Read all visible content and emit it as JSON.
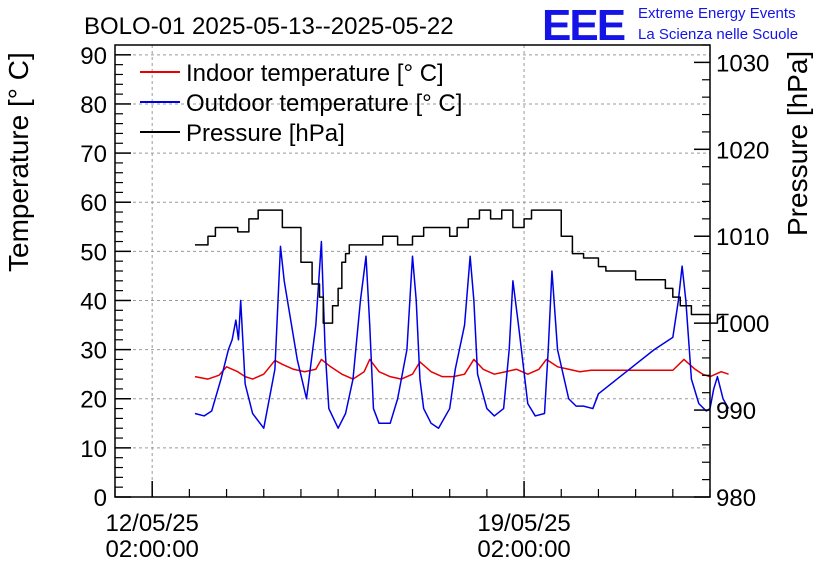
{
  "chart_data": {
    "type": "line",
    "title": "BOLO-01 2025-05-13--2025-05-22",
    "ylabel": "Temperature [° C]",
    "y2label": "Pressure [hPa]",
    "ylim": [
      0,
      92
    ],
    "y2lim": [
      980,
      1032
    ],
    "xlim_days": [
      12.0,
      28.0
    ],
    "y_ticks": [
      0,
      10,
      20,
      30,
      40,
      50,
      60,
      70,
      80,
      90
    ],
    "y2_ticks": [
      980,
      990,
      1000,
      1010,
      1020,
      1030
    ],
    "x_ticks": [
      {
        "day": 13.0,
        "line1": "12/05/25",
        "line2": "02:00:00"
      },
      {
        "day": 23.0,
        "line1": "19/05/25",
        "line2": "02:00:00"
      }
    ],
    "grid": true,
    "legend_position": "top-left",
    "series": [
      {
        "name": "Indoor temperature [° C]",
        "color": "#e60000",
        "axis": "left",
        "x": [
          14.15,
          14.5,
          14.8,
          15.0,
          15.3,
          15.5,
          15.7,
          16.0,
          16.3,
          16.5,
          16.8,
          17.1,
          17.4,
          17.55,
          17.8,
          18.1,
          18.4,
          18.7,
          18.85,
          19.1,
          19.4,
          19.7,
          20.0,
          20.2,
          20.5,
          20.8,
          21.1,
          21.4,
          21.65,
          21.9,
          22.2,
          22.5,
          22.8,
          23.1,
          23.4,
          23.6,
          23.9,
          24.2,
          24.5,
          24.8,
          25.0,
          25.5,
          26.0,
          26.5,
          26.8,
          27.0,
          27.3,
          27.6,
          27.8,
          28.0,
          28.3,
          28.5
        ],
        "y": [
          24.5,
          24.0,
          24.8,
          26.5,
          25.5,
          24.5,
          24.0,
          25.0,
          27.8,
          27.0,
          26.0,
          25.5,
          26.0,
          28.0,
          26.5,
          25.0,
          24.0,
          25.5,
          28.0,
          25.5,
          24.5,
          24.0,
          25.0,
          27.5,
          25.5,
          24.5,
          24.5,
          25.0,
          28.0,
          26.0,
          25.0,
          25.5,
          26.0,
          25.0,
          26.0,
          28.0,
          26.5,
          26.0,
          25.5,
          25.8,
          25.8,
          25.8,
          25.8,
          25.8,
          25.8,
          25.8,
          28.0,
          26.0,
          25.0,
          24.5,
          25.5,
          25.0
        ]
      },
      {
        "name": "Outdoor temperature [° C]",
        "color": "#0000e6",
        "axis": "left",
        "x": [
          14.15,
          14.4,
          14.6,
          14.85,
          15.05,
          15.15,
          15.25,
          15.32,
          15.38,
          15.5,
          15.7,
          16.0,
          16.3,
          16.45,
          16.55,
          16.9,
          17.15,
          17.25,
          17.4,
          17.55,
          17.65,
          17.75,
          18.0,
          18.2,
          18.4,
          18.6,
          18.75,
          18.85,
          18.95,
          19.1,
          19.4,
          19.6,
          19.85,
          20.0,
          20.1,
          20.2,
          20.3,
          20.5,
          20.7,
          21.0,
          21.15,
          21.4,
          21.55,
          21.65,
          21.75,
          22.0,
          22.2,
          22.45,
          22.6,
          22.7,
          22.85,
          23.1,
          23.3,
          23.55,
          23.65,
          23.75,
          23.9,
          24.2,
          24.4,
          24.6,
          24.85,
          25.0,
          25.5,
          26.0,
          26.5,
          27.0,
          27.15,
          27.25,
          27.35,
          27.5,
          27.7,
          27.9,
          28.0,
          28.1,
          28.2,
          28.35,
          28.5
        ],
        "y": [
          17.0,
          16.5,
          17.5,
          24.0,
          30.0,
          32.0,
          36.0,
          32.0,
          40.0,
          23.0,
          17.0,
          14.0,
          26.0,
          51.0,
          44.0,
          28.0,
          20.0,
          26.0,
          35.0,
          52.0,
          30.0,
          18.0,
          14.0,
          17.0,
          24.0,
          40.0,
          49.0,
          35.0,
          18.0,
          15.0,
          15.0,
          20.0,
          30.0,
          49.0,
          40.0,
          24.0,
          18.0,
          15.0,
          14.0,
          18.0,
          26.0,
          35.0,
          49.0,
          40.0,
          25.0,
          18.0,
          16.5,
          18.0,
          30.0,
          44.0,
          35.0,
          19.0,
          16.5,
          17.0,
          30.0,
          46.0,
          30.0,
          20.0,
          18.5,
          18.5,
          18.0,
          21.0,
          24.0,
          27.0,
          30.0,
          32.5,
          40.0,
          47.0,
          40.0,
          24.0,
          19.0,
          17.5,
          18.0,
          22.0,
          24.5,
          20.0,
          18.0
        ]
      },
      {
        "name": "Pressure [hPa]",
        "color": "#000000",
        "axis": "right",
        "x": [
          14.15,
          14.5,
          14.7,
          15.3,
          15.6,
          15.85,
          16.3,
          16.5,
          17.0,
          17.3,
          17.5,
          17.6,
          17.75,
          17.85,
          18.0,
          18.1,
          18.2,
          18.3,
          18.5,
          18.9,
          19.2,
          19.6,
          20.0,
          20.3,
          20.7,
          21.0,
          21.2,
          21.5,
          21.8,
          22.1,
          22.4,
          22.7,
          23.0,
          23.2,
          23.5,
          23.8,
          24.0,
          24.3,
          24.6,
          25.0,
          25.2,
          26.0,
          26.8,
          27.0,
          27.2,
          27.5,
          27.7,
          28.0,
          28.2,
          28.5
        ],
        "y": [
          1009.0,
          1010.0,
          1011.0,
          1010.5,
          1012.0,
          1013.0,
          1013.0,
          1011.0,
          1007.0,
          1004.5,
          1003.0,
          1000.0,
          1000.0,
          1002.0,
          1004.0,
          1007.0,
          1008.0,
          1009.0,
          1009.0,
          1009.0,
          1010.0,
          1009.0,
          1010.0,
          1011.0,
          1011.0,
          1010.0,
          1011.0,
          1012.0,
          1013.0,
          1012.0,
          1013.0,
          1011.0,
          1012.0,
          1013.0,
          1013.0,
          1013.0,
          1010.0,
          1008.0,
          1007.5,
          1006.5,
          1006.0,
          1005.0,
          1004.0,
          1003.0,
          1002.0,
          1001.0,
          1001.0,
          1000.0,
          1001.0,
          1001.0
        ]
      }
    ]
  },
  "logo": {
    "mark": "EEE",
    "line1": "Extreme Energy Events",
    "line2": "La Scienza nelle Scuole"
  }
}
